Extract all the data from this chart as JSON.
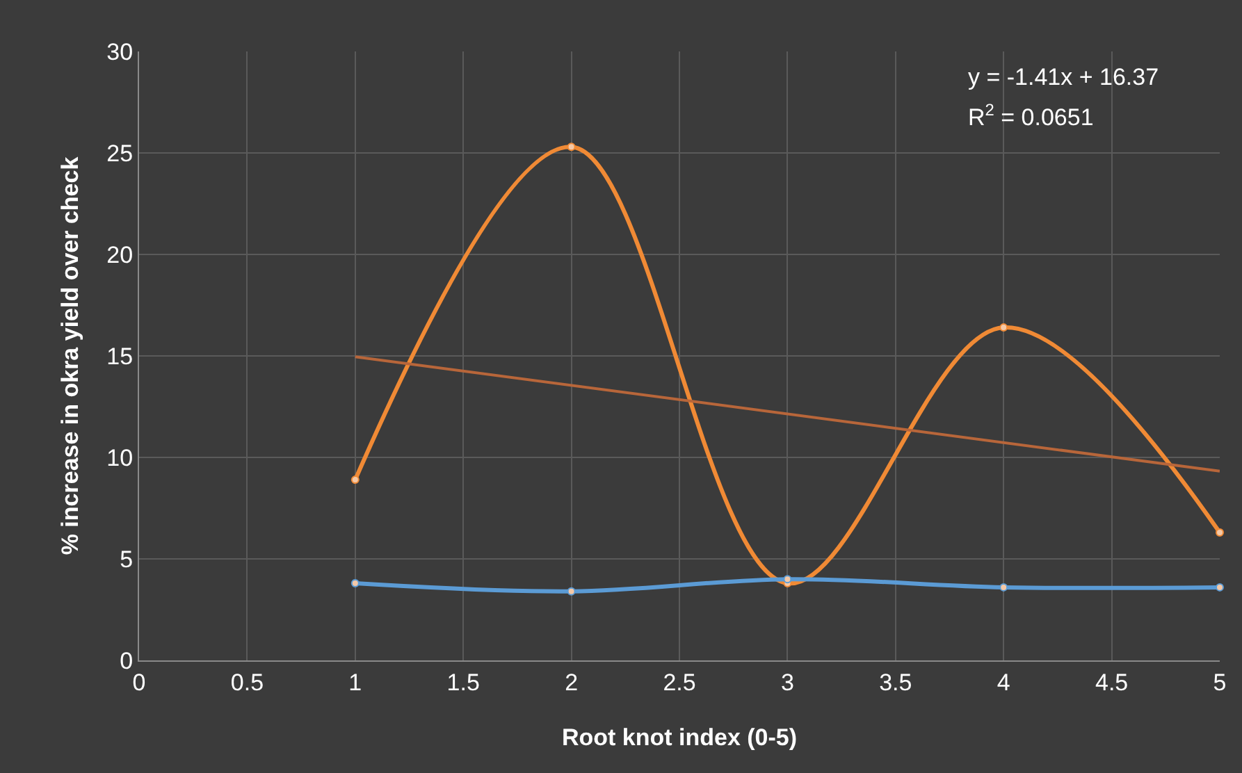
{
  "chart_data": {
    "type": "line",
    "xlabel": "Root knot index (0-5)",
    "ylabel": "% increase in okra yield over check",
    "x": [
      1,
      2,
      3,
      4,
      5
    ],
    "series": [
      {
        "color": "#f08a35",
        "values": [
          8.9,
          25.3,
          3.8,
          16.4,
          6.3
        ]
      },
      {
        "color": "#5b9bd5",
        "values": [
          3.8,
          3.4,
          4.0,
          3.6,
          3.6
        ]
      },
      {
        "type": "line",
        "color": "#b8663a",
        "x": [
          1,
          5
        ],
        "values": [
          14.96,
          9.32
        ],
        "marker": "none"
      }
    ],
    "xlim": [
      0,
      5
    ],
    "xticks": [
      0,
      0.5,
      1,
      1.5,
      2,
      2.5,
      3,
      3.5,
      4,
      4.5,
      5
    ],
    "ylim": [
      0,
      30
    ],
    "yticks": [
      0,
      5,
      10,
      15,
      20,
      25,
      30
    ],
    "grid": true,
    "marker": "circle",
    "line_style": "solid",
    "annotations": [
      "y = -1.41x + 16.37",
      "R$^{2}$ = 0.0651"
    ]
  }
}
